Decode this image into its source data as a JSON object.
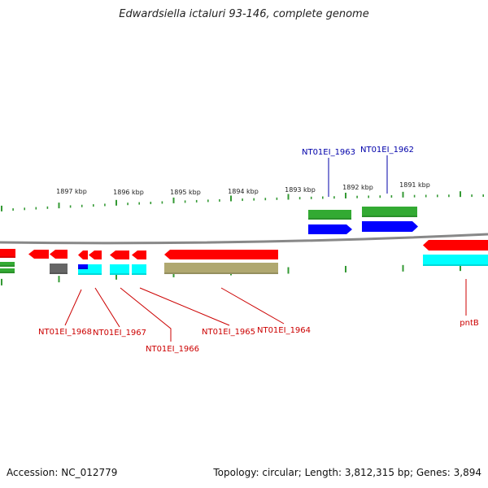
{
  "title": "Edwardsiella ictaluri 93-146, complete genome",
  "footer": {
    "accession": "Accession: NC_012779",
    "summary": "Topology: circular; Length: 3,812,315 bp; Genes: 3,894"
  },
  "colors": {
    "forward_gene": "#ff0000",
    "reverse_gene": "#0000ff",
    "cds": "#00ffff",
    "rna": "#33aa33",
    "pseudo": "#666666",
    "other_feature": "#b0a870",
    "ticks": "#339933",
    "backbone": "#888888",
    "label_red": "#cc0000",
    "label_blue": "#0000aa"
  },
  "scale_labels": [
    {
      "text": "1897 kbp",
      "kbp": 1897
    },
    {
      "text": "1896 kbp",
      "kbp": 1896
    },
    {
      "text": "1895 kbp",
      "kbp": 1895
    },
    {
      "text": "1894 kbp",
      "kbp": 1894
    },
    {
      "text": "1893 kbp",
      "kbp": 1893
    },
    {
      "text": "1892 kbp",
      "kbp": 1892
    },
    {
      "text": "1891 kbp",
      "kbp": 1891
    }
  ],
  "gene_labels": [
    {
      "text": "NT01EI_1963",
      "strand": "top"
    },
    {
      "text": "NT01EI_1962",
      "strand": "top"
    },
    {
      "text": "NT01EI_1968",
      "strand": "bottom"
    },
    {
      "text": "NT01EI_1967",
      "strand": "bottom"
    },
    {
      "text": "NT01EI_1966",
      "strand": "bottom"
    },
    {
      "text": "NT01EI_1965",
      "strand": "bottom"
    },
    {
      "text": "NT01EI_1964",
      "strand": "bottom"
    },
    {
      "text": "pntB",
      "strand": "bottom"
    }
  ]
}
